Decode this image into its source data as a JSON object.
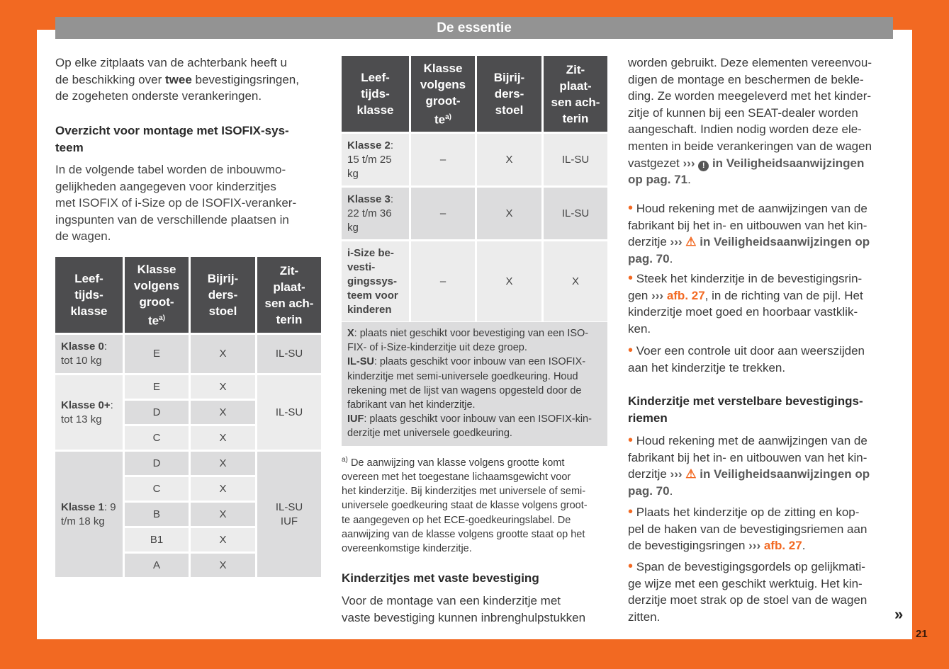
{
  "header": {
    "title": "De essentie"
  },
  "left": {
    "p1a": "Op elke zitplaats van de achterbank heeft u\nde beschikking over ",
    "p1b": "twee",
    "p1c": " bevestigingsringen,\nde zogeheten onderste verankeringen.",
    "h1": "Overzicht voor montage met ISOFIX-sys-\nteem",
    "p2": "In de volgende tabel worden de inbouwmo-\ngelijkheden aangegeven voor kinderzitjes\nmet ISOFIX of i-Size op de ISOFIX-veranker-\ningspunten van de verschillende plaatsen in\nde wagen."
  },
  "table_headers": [
    "Leef-\ntijds-\nklasse",
    "Klasse\nvolgens\ngroot-\nte",
    "Bijrij-\nders-\nstoel",
    "Zit-\nplaat-\nsen ach-\nterin"
  ],
  "footnote_marker": "a)",
  "table1": {
    "k0": {
      "name": "Klasse 0",
      "rest": ":\ntot 10 kg",
      "size": "E",
      "front": "X",
      "rear": "IL-SU"
    },
    "k0p": {
      "name": "Klasse 0+",
      "rest": ":\ntot 13 kg",
      "sizes": [
        "E",
        "D",
        "C"
      ],
      "front": [
        "X",
        "X",
        "X"
      ],
      "rear": "IL-SU"
    },
    "k1": {
      "name": "Klasse 1",
      "rest": ": 9\nt/m 18 kg",
      "sizes": [
        "D",
        "C",
        "B",
        "B1",
        "A"
      ],
      "front": [
        "X",
        "X",
        "X",
        "X",
        "X"
      ],
      "rear": "IL-SU\nIUF"
    }
  },
  "table2": {
    "k2": {
      "name": "Klasse 2",
      "rest": ":\n15 t/m 25\nkg",
      "size": "–",
      "front": "X",
      "rear": "IL-SU"
    },
    "k3": {
      "name": "Klasse 3",
      "rest": ":\n22 t/m 36\nkg",
      "size": "–",
      "front": "X",
      "rear": "IL-SU"
    },
    "isize": {
      "name": "i-Size be-\nvesti-\ngingssys-\nteem voor\nkinderen",
      "size": "–",
      "front": "X",
      "rear": "X"
    }
  },
  "legend": {
    "x_key": "X",
    "x_text": ": plaats niet geschikt voor bevestiging van een ISO-\nFIX- of i-Size-kinderzitje uit deze groep.",
    "ilsu_key": "IL-SU",
    "ilsu_text": ": plaats geschikt voor inbouw van een ISOFIX-\nkinderzitje met semi-universele goedkeuring. Houd\nrekening met de lijst van wagens opgesteld door de\nfabrikant van het kinderzitje.",
    "iuf_key": "IUF",
    "iuf_text": ": plaats geschikt voor inbouw van een ISOFIX-kin-\nderzitje met universele goedkeuring."
  },
  "footnote": "De aanwijzing van klasse volgens grootte komt\novereen met het toegestane lichaamsgewicht voor\nhet kinderzitje. Bij kinderzitjes met universele of semi-\nuniversele goedkeuring staat de klasse volgens groot-\nte aangegeven op het ECE-goedkeuringslabel. De\naanwijzing van de klasse volgens grootte staat op het\novereenkomstige kinderzitje.",
  "middle": {
    "h2": "Kinderzitjes met vaste bevestiging",
    "p": "Voor de montage van een kinderzitje met\nvaste bevestiging kunnen inbrenghulpstukken"
  },
  "right": {
    "p1": "worden gebruikt. Deze elementen vereenvou-\ndigen de montage en beschermen de bekle-\nding. Ze worden meegeleverd met het kinder-\nzitje of kunnen bij een SEAT-dealer worden\naangeschaft. Indien nodig worden deze ele-\nmenten in beide verankeringen van de wagen\nvastgezet ",
    "arrows": "›››",
    "p1ref": " in Veiligheidsaanwijzingen\nop pag. 71",
    "dot": ".",
    "b1": " Houd rekening met de aanwijzingen van de\nfabrikant bij het in- en uitbouwen van het kin-\nderzitje ",
    "b1ref": " in Veiligheidsaanwijzingen op\npag. 70",
    "b2": " Steek het kinderzitje in de bevestigingsrin-\ngen ",
    "b2ref": "afb. 27",
    "b2end": ", in de richting van de pijl. Het\nkinderzitje moet goed en hoorbaar vastklik-\nken.",
    "b3": " Voer een controle uit door aan weerszijden\naan het kinderzitje te trekken.",
    "h3": "Kinderzitje met verstelbare bevestigings-\nriemen",
    "b4": " Houd rekening met de aanwijzingen van de\nfabrikant bij het in- en uitbouwen van het kin-\nderzitje ",
    "b4ref": " in Veiligheidsaanwijzingen op\npag. 70",
    "b5": " Plaats het kinderzitje op de zitting en kop-\npel de haken van de bevestigingsriemen aan\nde bevestigingsringen ",
    "b5ref": "afb. 27",
    "b6": " Span de bevestigingsgordels op gelijkmati-\nge wijze met een geschikt werktuig. Het kin-\nderzitje moet strak op de stoel van de wagen\nzitten.",
    "continue": "»"
  },
  "page_number": "21",
  "colors": {
    "accent": "#f26922",
    "header_bar": "#939393",
    "table_header": "#4d4d4f"
  },
  "icons": [
    "exclamation-circle-icon",
    "warning-triangle-icon",
    "bullet-icon",
    "continue-chevron-icon"
  ]
}
